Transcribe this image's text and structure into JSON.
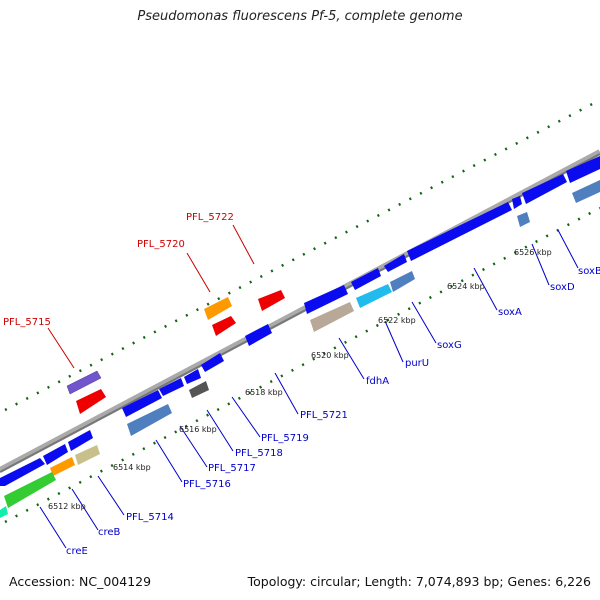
{
  "title": "Pseudomonas fluorescens Pf-5, complete genome",
  "footer": {
    "accession": "Accession: NC_004129",
    "stats": "Topology: circular; Length: 7,074,893 bp; Genes: 6,226"
  },
  "colors": {
    "blue": "#0b0bf0",
    "steelblue": "#4f7fbf",
    "red": "#ee0000",
    "orange": "#ff9900",
    "purple": "#7055cc",
    "green": "#33cc33",
    "khaki": "#c8c08a",
    "cyan": "#22bbee",
    "gray": "#555555",
    "tan": "#b8a898",
    "teal": "#10eeaa",
    "label_red": "#cc0000",
    "label_blue": "#0000cc",
    "tick_green": "#116611",
    "backbone": "#888888"
  },
  "scale_labels": [
    "6512 kbp",
    "6514 kbp",
    "6516 kbp",
    "6518 kbp",
    "6520 kbp",
    "6522 kbp",
    "6524 kbp",
    "6526 kbp"
  ],
  "forward_labels": [
    "PFL_5715",
    "PFL_5720",
    "PFL_5722"
  ],
  "reverse_labels": [
    "creE",
    "creB",
    "PFL_5714",
    "PFL_5716",
    "PFL_5717",
    "PFL_5718",
    "PFL_5719",
    "PFL_5721",
    "fdhA",
    "purU",
    "soxG",
    "soxA",
    "soxD",
    "soxB"
  ]
}
